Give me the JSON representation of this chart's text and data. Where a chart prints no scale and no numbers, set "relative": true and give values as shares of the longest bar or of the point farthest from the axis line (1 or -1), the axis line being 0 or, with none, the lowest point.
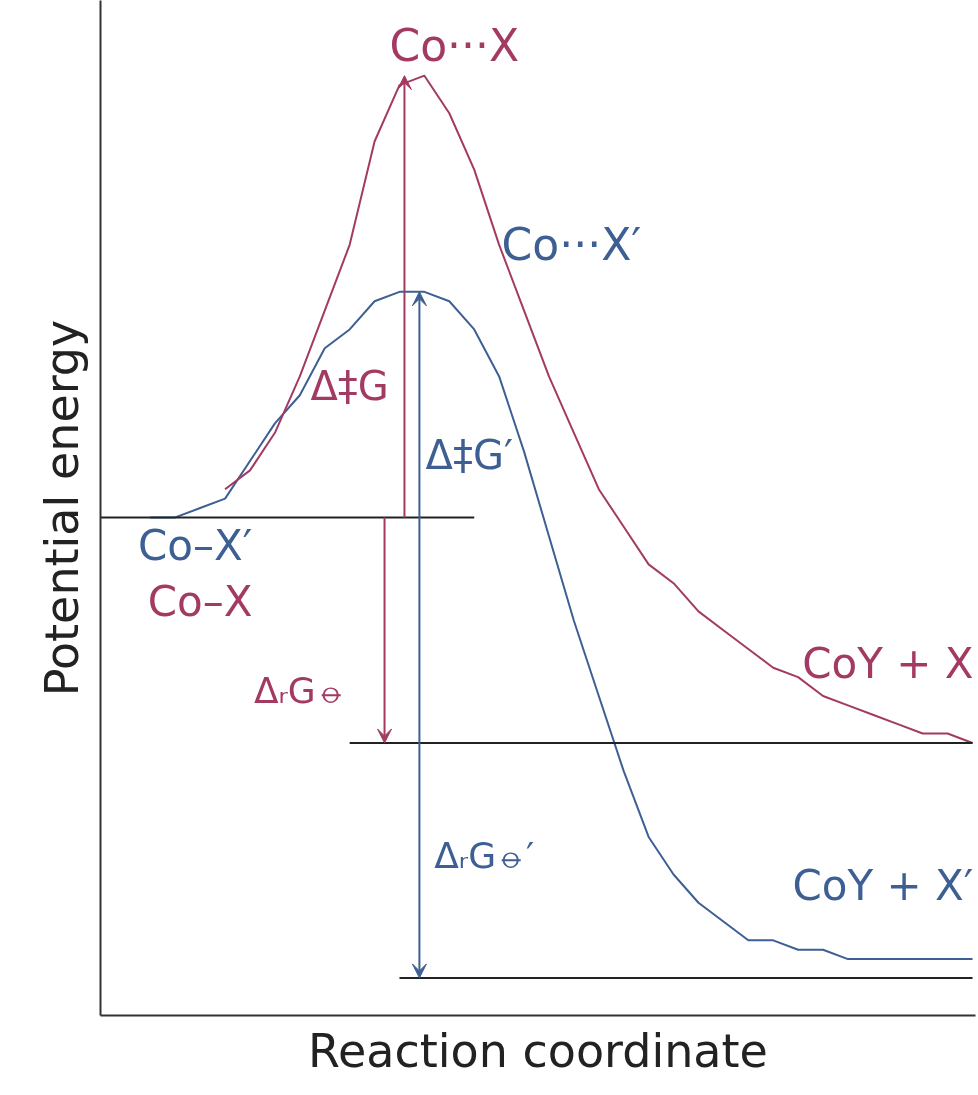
{
  "chart_data": {
    "type": "line",
    "relative": true,
    "xlabel": "Reaction coordinate",
    "ylabel": "Potential energy",
    "categories": [
      null,
      null,
      null,
      null,
      null,
      null,
      null,
      null,
      null,
      null,
      null,
      null,
      null,
      null,
      null,
      null,
      null,
      null,
      null,
      null,
      null,
      null,
      null,
      null,
      null,
      null,
      null,
      null,
      null,
      null,
      null,
      null,
      null,
      null,
      null,
      null
    ],
    "series": [
      {
        "color": "#3d5f93",
        "values": [
          null,
          null,
          0.53,
          0.53,
          0.54,
          0.55,
          0.59,
          0.63,
          0.66,
          0.71,
          0.73,
          0.76,
          0.77,
          0.77,
          0.76,
          0.73,
          0.68,
          0.6,
          0.51,
          0.42,
          0.34,
          0.26,
          0.19,
          0.15,
          0.12,
          0.1,
          0.08,
          0.08,
          0.07,
          0.07,
          0.06,
          0.06,
          0.06,
          0.06,
          0.06,
          0.06
        ]
      },
      {
        "color": "#a33a62",
        "values": [
          null,
          null,
          null,
          null,
          null,
          0.56,
          0.58,
          0.62,
          0.68,
          0.75,
          0.82,
          0.93,
          0.99,
          1.0,
          0.96,
          0.9,
          0.82,
          0.75,
          0.68,
          0.62,
          0.56,
          0.52,
          0.48,
          0.46,
          0.43,
          0.41,
          0.39,
          0.37,
          0.36,
          0.34,
          0.33,
          0.32,
          0.31,
          0.3,
          0.3,
          0.29
        ]
      },
      {
        "color": "#222222",
        "values": [
          0.53,
          0.53,
          0.53,
          0.53,
          0.53,
          0.53,
          0.53,
          0.53,
          0.53,
          0.53,
          0.53,
          0.53,
          0.53,
          0.53,
          0.53,
          0.53,
          null,
          null,
          null,
          null,
          null,
          null,
          null,
          null,
          null,
          null,
          null,
          null,
          null,
          null,
          null,
          null,
          null,
          null,
          null,
          null
        ]
      },
      {
        "color": "#222222",
        "values": [
          null,
          null,
          null,
          null,
          null,
          null,
          null,
          null,
          null,
          null,
          0.29,
          0.29,
          0.29,
          0.29,
          0.29,
          0.29,
          0.29,
          0.29,
          0.29,
          0.29,
          0.29,
          0.29,
          0.29,
          0.29,
          0.29,
          0.29,
          0.29,
          0.29,
          0.29,
          0.29,
          0.29,
          0.29,
          0.29,
          0.29,
          0.29,
          0.29
        ]
      },
      {
        "color": "#222222",
        "values": [
          null,
          null,
          null,
          null,
          null,
          null,
          null,
          null,
          null,
          null,
          null,
          null,
          0.04,
          0.04,
          0.04,
          0.04,
          0.04,
          0.04,
          0.04,
          0.04,
          0.04,
          0.04,
          0.04,
          0.04,
          0.04,
          0.04,
          0.04,
          0.04,
          0.04,
          0.04,
          0.04,
          0.04,
          0.04,
          0.04,
          0.04,
          0.04
        ]
      }
    ],
    "annotations": [
      "Co···X",
      "Co···X′",
      "Δ‡G",
      "Δ‡G′",
      "Co–X′",
      "Co–X",
      "ΔᵣG⦵",
      "ΔᵣG⦵′",
      "CoY + X",
      "CoY + X′"
    ],
    "tick_labels": false
  }
}
